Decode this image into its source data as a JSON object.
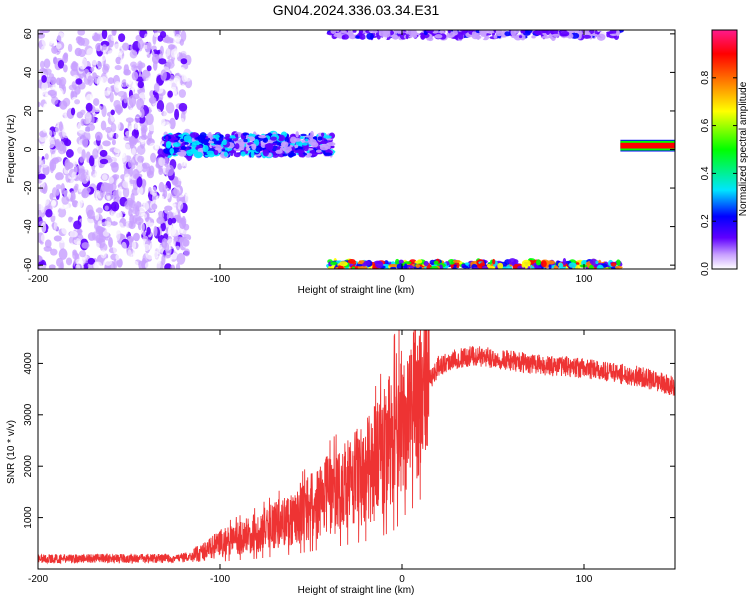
{
  "title": "GN04.2024.336.03.34.E31",
  "chart_data": [
    {
      "type": "heatmap",
      "xlabel": "Height of straight line (km)",
      "ylabel": "Frequency (Hz)",
      "xlim": [
        -200,
        150
      ],
      "ylim": [
        -62,
        62
      ],
      "x_ticks": [
        -200,
        -100,
        0,
        100
      ],
      "y_ticks": [
        -60,
        -40,
        -20,
        0,
        20,
        40,
        60
      ],
      "colorbar": {
        "label": "Normalized spectral amplitude",
        "range": [
          0,
          1
        ],
        "ticks": [
          0.0,
          0.2,
          0.4,
          0.6,
          0.8
        ],
        "tick_labels": [
          "0.0",
          "0.2",
          "0.4",
          "0.6",
          "0.8"
        ],
        "colors": [
          "#ffffff",
          "#c8a0ff",
          "#6000ff",
          "#0000ff",
          "#00e5ff",
          "#00ff00",
          "#ffff00",
          "#ff8000",
          "#ff0000",
          "#ff1a8c"
        ]
      },
      "regions": [
        {
          "feature": "scattered noise",
          "x": [
            -200,
            -117
          ],
          "freq": [
            -62,
            62
          ],
          "amplitude": [
            0.0,
            0.2
          ]
        },
        {
          "feature": "low-frequency band",
          "x": [
            -130,
            -38
          ],
          "freq": [
            -3,
            8
          ],
          "amplitude": [
            0.1,
            0.5
          ]
        },
        {
          "feature": "upper band edge",
          "x": [
            -40,
            120
          ],
          "freq": [
            58,
            62
          ],
          "amplitude": [
            0.05,
            0.3
          ]
        },
        {
          "feature": "lower band edge",
          "x": [
            -40,
            120
          ],
          "freq": [
            -62,
            -58
          ],
          "amplitude": [
            0.2,
            0.95
          ]
        },
        {
          "feature": "narrow line",
          "x": [
            120,
            150
          ],
          "freq": [
            0,
            4
          ],
          "amplitude": [
            0.6,
            1.0
          ]
        }
      ]
    },
    {
      "type": "line",
      "xlabel": "Height of straight line (km)",
      "ylabel": "SNR (10 * v/v)",
      "xlim": [
        -200,
        150
      ],
      "ylim": [
        0,
        4650
      ],
      "x_ticks": [
        -200,
        -100,
        0,
        100
      ],
      "y_ticks": [
        1000,
        2000,
        3000,
        4000
      ],
      "color": "#ee3333",
      "series": [
        {
          "x": [
            -200,
            -190,
            -180,
            -170,
            -160,
            -150,
            -140,
            -130,
            -120,
            -115,
            -110,
            -100,
            -90,
            -80,
            -70,
            -60,
            -50,
            -40,
            -30,
            -20,
            -15,
            -10,
            -5,
            0,
            5,
            10,
            15,
            20,
            30,
            40,
            50,
            60,
            70,
            80,
            90,
            100,
            110,
            120,
            130,
            140,
            150
          ],
          "values": [
            200,
            200,
            200,
            210,
            200,
            200,
            210,
            200,
            220,
            260,
            320,
            500,
            600,
            700,
            850,
            1000,
            1200,
            1450,
            1650,
            1900,
            2050,
            2300,
            2600,
            2950,
            3100,
            3300,
            3650,
            3950,
            4100,
            4150,
            4100,
            4050,
            4000,
            3950,
            3950,
            3900,
            3850,
            3800,
            3750,
            3650,
            3550
          ]
        }
      ]
    }
  ]
}
